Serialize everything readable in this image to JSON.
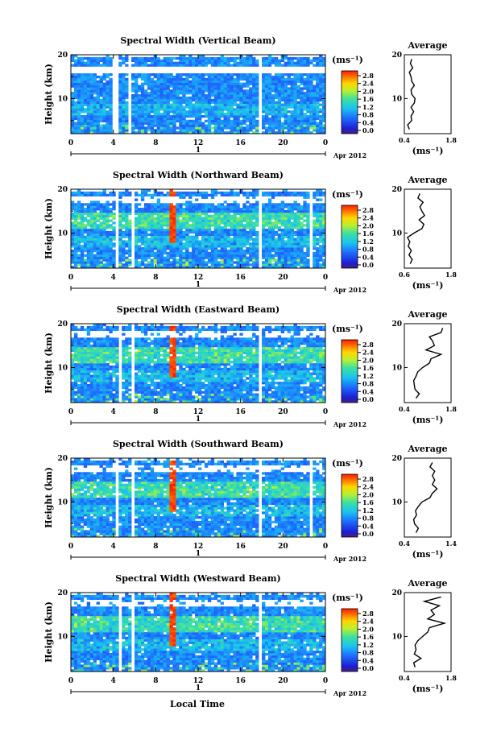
{
  "figure": {
    "xlabel": "Local Time",
    "date_label": "Apr 2012",
    "day_label": "1",
    "ylabel": "Height (km)",
    "unit_label": "(ms⁻¹)",
    "avg_title": "Average",
    "avg_xlabel": "(ms⁻¹)",
    "colorbar_ticks": [
      "2.8",
      "2.4",
      "2.0",
      "1.6",
      "1.2",
      "0.8",
      "0.4",
      "0.0"
    ],
    "x_ticks": [
      "0",
      "4",
      "8",
      "12",
      "16",
      "20",
      "0"
    ],
    "y_ticks": [
      "20",
      "10"
    ]
  },
  "chart_data": [
    {
      "type": "heatmap",
      "title": "Spectral Width (Vertical Beam)",
      "x_range_hours": [
        0,
        24
      ],
      "y_range_km": [
        2,
        20
      ],
      "z_range": [
        0,
        3.0
      ],
      "gaps_hours": [
        [
          4.0,
          4.6
        ],
        [
          5.4,
          5.8
        ],
        [
          17.6,
          17.9
        ]
      ],
      "average": {
        "type": "line",
        "title": "Average",
        "xlim": [
          0.4,
          1.8
        ],
        "x_ticks": [
          "0.4",
          "1.8"
        ],
        "height_km": [
          3,
          4,
          5,
          6,
          7,
          8,
          9,
          10,
          11,
          12,
          13,
          14,
          15,
          16,
          17,
          18,
          19
        ],
        "width": [
          0.55,
          0.5,
          0.62,
          0.6,
          0.68,
          0.6,
          0.7,
          0.72,
          0.62,
          0.6,
          0.7,
          0.62,
          0.6,
          0.55,
          0.65,
          0.58,
          0.62
        ]
      }
    },
    {
      "type": "heatmap",
      "title": "Spectral Width (Northward Beam)",
      "x_range_hours": [
        0,
        24
      ],
      "y_range_km": [
        2,
        20
      ],
      "z_range": [
        0,
        3.0
      ],
      "gaps_hours": [
        [
          4.2,
          4.6
        ],
        [
          5.6,
          5.9
        ],
        [
          17.6,
          17.9
        ],
        [
          22.6,
          22.8
        ]
      ],
      "average": {
        "type": "line",
        "title": "Average",
        "xlim": [
          0.6,
          1.8
        ],
        "x_ticks": [
          "0.6",
          "1.8"
        ],
        "height_km": [
          3,
          4,
          5,
          6,
          7,
          8,
          9,
          10,
          11,
          12,
          13,
          14,
          15,
          16,
          17,
          18,
          19
        ],
        "width": [
          0.75,
          0.8,
          0.72,
          0.78,
          0.7,
          0.74,
          0.68,
          0.85,
          1.05,
          1.1,
          0.98,
          1.12,
          1.05,
          1.0,
          1.08,
          0.95,
          1.0
        ]
      }
    },
    {
      "type": "heatmap",
      "title": "Spectral Width (Eastward Beam)",
      "x_range_hours": [
        0,
        24
      ],
      "y_range_km": [
        2,
        20
      ],
      "z_range": [
        0,
        3.0
      ],
      "gaps_hours": [
        [
          4.4,
          4.7
        ],
        [
          5.6,
          5.9
        ],
        [
          17.6,
          17.9
        ]
      ],
      "average": {
        "type": "line",
        "title": "Average",
        "xlim": [
          0.4,
          1.8
        ],
        "x_ticks": [
          "0.4",
          "1.8"
        ],
        "height_km": [
          3,
          4,
          5,
          6,
          7,
          8,
          9,
          10,
          11,
          12,
          13,
          14,
          15,
          16,
          17,
          18,
          19
        ],
        "width": [
          0.75,
          0.85,
          0.72,
          0.7,
          0.68,
          0.75,
          0.8,
          0.95,
          1.15,
          1.2,
          1.5,
          1.05,
          1.3,
          1.25,
          1.15,
          1.5,
          1.55
        ]
      }
    },
    {
      "type": "heatmap",
      "title": "Spectral Width (Southward Beam)",
      "x_range_hours": [
        0,
        24
      ],
      "y_range_km": [
        2,
        20
      ],
      "z_range": [
        0,
        3.0
      ],
      "gaps_hours": [
        [
          4.2,
          4.6
        ],
        [
          5.6,
          5.9
        ],
        [
          17.6,
          17.9
        ],
        [
          22.6,
          22.8
        ]
      ],
      "average": {
        "type": "line",
        "title": "Average",
        "xlim": [
          0.4,
          1.4
        ],
        "x_ticks": [
          "0.4",
          "1.4"
        ],
        "height_km": [
          3,
          4,
          5,
          6,
          7,
          8,
          9,
          10,
          11,
          12,
          13,
          14,
          15,
          16,
          17,
          18,
          19
        ],
        "width": [
          0.65,
          0.7,
          0.62,
          0.6,
          0.66,
          0.64,
          0.7,
          0.78,
          0.95,
          1.0,
          1.1,
          1.0,
          1.05,
          1.0,
          1.05,
          0.95,
          1.0
        ]
      }
    },
    {
      "type": "heatmap",
      "title": "Spectral Width (Westward Beam)",
      "x_range_hours": [
        0,
        24
      ],
      "y_range_km": [
        2,
        20
      ],
      "z_range": [
        0,
        3.0
      ],
      "gaps_hours": [
        [
          4.4,
          4.7
        ],
        [
          5.6,
          5.9
        ],
        [
          17.6,
          17.9
        ]
      ],
      "average": {
        "type": "line",
        "title": "Average",
        "xlim": [
          0.4,
          1.8
        ],
        "x_ticks": [
          "0.4",
          "1.8"
        ],
        "height_km": [
          3,
          4,
          5,
          6,
          7,
          8,
          9,
          10,
          11,
          12,
          13,
          14,
          15,
          16,
          17,
          18,
          19
        ],
        "width": [
          0.72,
          0.68,
          0.9,
          0.7,
          0.75,
          0.72,
          0.8,
          0.95,
          1.1,
          1.15,
          1.6,
          1.1,
          1.3,
          1.2,
          1.45,
          1.0,
          1.5
        ]
      }
    }
  ]
}
